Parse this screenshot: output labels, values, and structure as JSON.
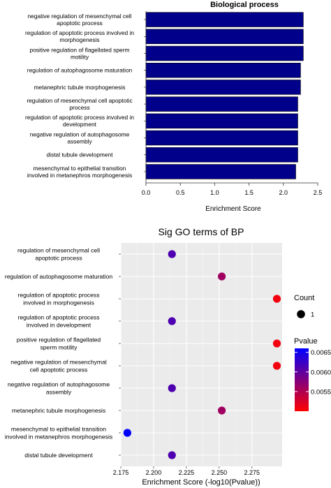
{
  "chart_data": [
    {
      "type": "bar",
      "orientation": "horizontal",
      "title": "Biological process",
      "xlabel": "Enrichment Score",
      "ylabel": "",
      "xlim": [
        0,
        2.5
      ],
      "xticks": [
        "0.0",
        "0.5",
        "1.0",
        "1.5",
        "2.0",
        "2.5"
      ],
      "grid": false,
      "bar_color": "#00008b",
      "categories": [
        "negative regulation of mesenchymal cell apoptotic process",
        "regulation of apoptotic process involved in morphogenesis",
        "positive regulation of flagellated sperm motility",
        "regulation of autophagosome maturation",
        "metanephric tubule morphogenesis",
        "regulation of mesenchymal cell apoptotic process",
        "regulation of apoptotic process involved in development",
        "negative regulation of autophagosome assembly",
        "distal tubule development",
        "mesenchymal to epithelial transition involved in metanephros morphogenesis"
      ],
      "values": [
        2.29,
        2.29,
        2.29,
        2.25,
        2.25,
        2.21,
        2.21,
        2.21,
        2.21,
        2.18
      ]
    },
    {
      "type": "scatter",
      "title": "Sig GO terms of BP",
      "xlabel": "Enrichment Score (-log10(Pvalue))",
      "ylabel": "",
      "xlim": [
        2.175,
        2.298
      ],
      "xticks": [
        "2.175",
        "2.200",
        "2.225",
        "2.250",
        "2.275"
      ],
      "grid": true,
      "categories": [
        "regulation of mesenchymal cell apoptotic process",
        "regulation of autophagosome maturation",
        "regulation of apoptotic process involved in morphogenesis",
        "regulation of apoptotic process involved in development",
        "positive regulation of flagellated sperm motility",
        "negative regulation of mesenchymal cell apoptotic process",
        "negative regulation of autophagosome assembly",
        "metanephric tubule morphogenesis",
        "mesenchymal to epithelial transition involved in metanephros morphogenesis",
        "distal tubule development"
      ],
      "x": [
        2.214,
        2.252,
        2.294,
        2.214,
        2.294,
        2.294,
        2.214,
        2.252,
        2.18,
        2.214
      ],
      "pvalue": [
        0.00611,
        0.0056,
        0.00508,
        0.00611,
        0.00508,
        0.00508,
        0.00611,
        0.0056,
        0.00661,
        0.00611
      ],
      "count": [
        1,
        1,
        1,
        1,
        1,
        1,
        1,
        1,
        1,
        1
      ],
      "legend": {
        "placement": "right",
        "count_title": "Count",
        "count_labels": [
          "1"
        ],
        "pvalue_title": "Pvalue",
        "pvalue_ticks": [
          {
            "value": 0.0065,
            "label": "0.0065"
          },
          {
            "value": 0.006,
            "label": "0.0060"
          },
          {
            "value": 0.0055,
            "label": "0.0055"
          }
        ],
        "pvalue_range": [
          0.005,
          0.0066
        ],
        "colors": {
          "low": "#ff0000",
          "high": "#0000ff"
        }
      }
    }
  ]
}
